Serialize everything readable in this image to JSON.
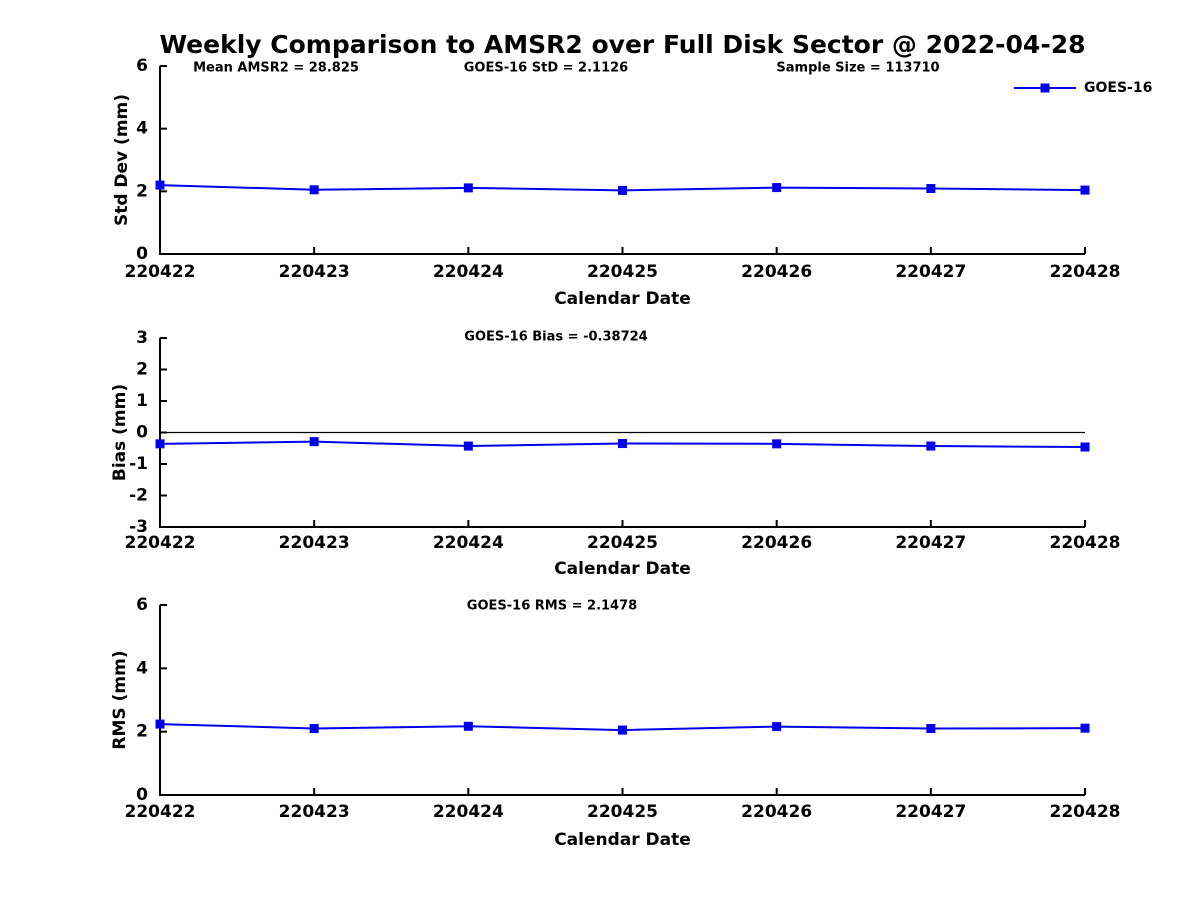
{
  "title": "Weekly Comparison to AMSR2 over Full Disk Sector @ 2022-04-28",
  "legend": {
    "label": "GOES-16",
    "color": "#0000ee"
  },
  "colors": {
    "line": "#0000ee",
    "axis": "#000000",
    "zero_line": "#000000"
  },
  "chart_data": [
    {
      "type": "line",
      "title": "",
      "annotations": [
        "Mean AMSR2 = 28.825",
        "GOES-16 StD = 2.1126",
        "Sample Size = 113710"
      ],
      "categories": [
        "220422",
        "220423",
        "220424",
        "220425",
        "220426",
        "220427",
        "220428"
      ],
      "series": [
        {
          "name": "GOES-16",
          "values": [
            2.2,
            2.05,
            2.11,
            2.03,
            2.12,
            2.09,
            2.04
          ]
        }
      ],
      "xlabel": "Calendar Date",
      "ylabel": "Std Dev (mm)",
      "ylim": [
        0,
        6
      ],
      "yticks": [
        0,
        2,
        4,
        6
      ],
      "zero_line": false,
      "grid": false,
      "marker": "square"
    },
    {
      "type": "line",
      "title": "",
      "annotations": [
        "GOES-16 Bias  = -0.38724"
      ],
      "categories": [
        "220422",
        "220423",
        "220424",
        "220425",
        "220426",
        "220427",
        "220428"
      ],
      "series": [
        {
          "name": "GOES-16",
          "values": [
            -0.36,
            -0.29,
            -0.43,
            -0.35,
            -0.36,
            -0.43,
            -0.46
          ]
        }
      ],
      "xlabel": "Calendar Date",
      "ylabel": "Bias (mm)",
      "ylim": [
        -3,
        3
      ],
      "yticks": [
        -3,
        -2,
        -1,
        0,
        1,
        2,
        3
      ],
      "zero_line": true,
      "grid": false,
      "marker": "square"
    },
    {
      "type": "line",
      "title": "",
      "annotations": [
        "GOES-16 RMS = 2.1478"
      ],
      "categories": [
        "220422",
        "220423",
        "220424",
        "220425",
        "220426",
        "220427",
        "220428"
      ],
      "series": [
        {
          "name": "GOES-16",
          "values": [
            2.24,
            2.1,
            2.17,
            2.05,
            2.16,
            2.1,
            2.11
          ]
        }
      ],
      "xlabel": "Calendar Date",
      "ylabel": "RMS (mm)",
      "ylim": [
        0,
        6
      ],
      "yticks": [
        0,
        2,
        4,
        6
      ],
      "zero_line": false,
      "grid": false,
      "marker": "square"
    }
  ]
}
